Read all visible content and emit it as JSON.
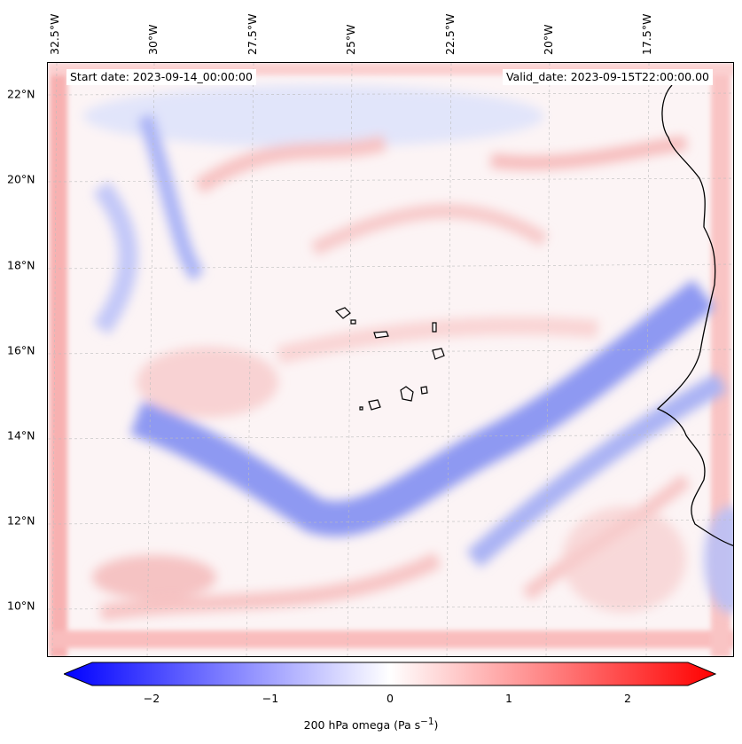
{
  "header": {
    "start_date": "Start date: 2023-09-14_00:00:00",
    "valid_date": "Valid_date: 2023-09-15T22:00:00.00"
  },
  "axes": {
    "lat_labels": [
      "22°N",
      "20°N",
      "18°N",
      "16°N",
      "14°N",
      "12°N",
      "10°N"
    ],
    "lon_labels": [
      "32.5°W",
      "30°W",
      "27.5°W",
      "25°W",
      "22.5°W",
      "20°W",
      "17.5°W"
    ]
  },
  "colorbar": {
    "label_text": "200 hPa omega (Pa s",
    "label_unit_exp": "−1",
    "label_close": ")",
    "ticks": [
      "−2",
      "−1",
      "0",
      "1",
      "2"
    ],
    "range": [
      -2.6,
      2.6
    ],
    "colormap": "bwr",
    "colors": {
      "negative": "#0000ff",
      "zero": "#ffffff",
      "positive": "#ff0000"
    }
  },
  "map": {
    "field": "200 hPa omega",
    "features": [
      "Cape Verde islands",
      "West African coastline"
    ]
  }
}
